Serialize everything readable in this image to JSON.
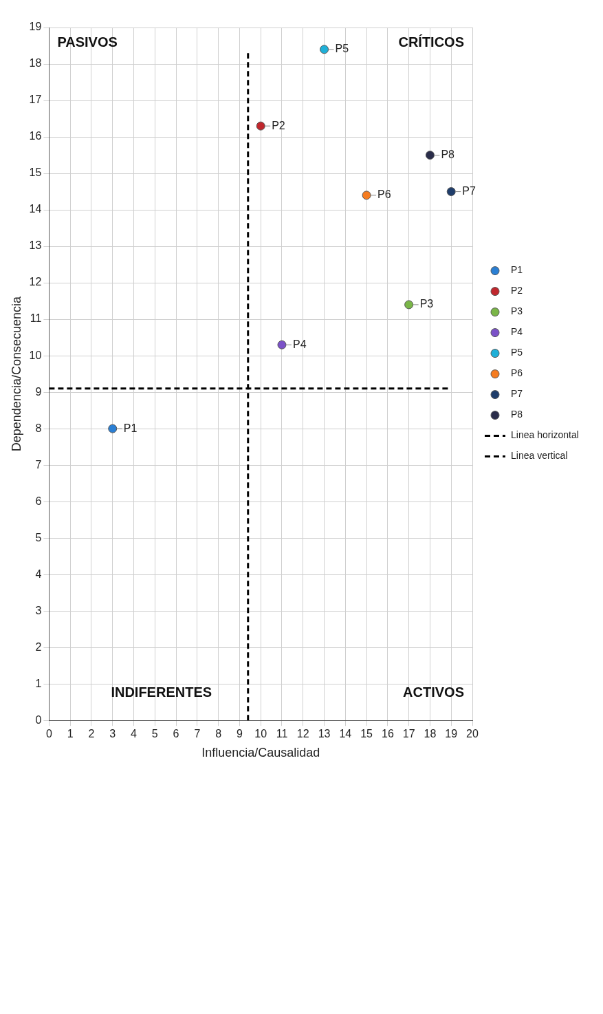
{
  "chart_data": {
    "type": "scatter",
    "xlabel": "Influencia/Causalidad",
    "ylabel": "Dependencia/Consecuencia",
    "xlim": [
      0,
      20
    ],
    "ylim": [
      0,
      19
    ],
    "xticks": [
      0,
      1,
      2,
      3,
      4,
      5,
      6,
      7,
      8,
      9,
      10,
      11,
      12,
      13,
      14,
      15,
      16,
      17,
      18,
      19,
      20
    ],
    "yticks": [
      0,
      1,
      2,
      3,
      4,
      5,
      6,
      7,
      8,
      9,
      10,
      11,
      12,
      13,
      14,
      15,
      16,
      17,
      18,
      19
    ],
    "grid": true,
    "legend": "right",
    "marker": "circle",
    "series": [
      {
        "name": "P1",
        "color": "#2a7fd4",
        "x": [
          3
        ],
        "values": [
          8
        ]
      },
      {
        "name": "P2",
        "color": "#c0272d",
        "x": [
          10
        ],
        "values": [
          16.3
        ]
      },
      {
        "name": "P3",
        "color": "#7ab648",
        "x": [
          17
        ],
        "values": [
          11.4
        ]
      },
      {
        "name": "P4",
        "color": "#7b52c8",
        "x": [
          11
        ],
        "values": [
          10.3
        ]
      },
      {
        "name": "P5",
        "color": "#1fb0d8",
        "x": [
          13
        ],
        "values": [
          18.4
        ]
      },
      {
        "name": "P6",
        "color": "#f57c20",
        "x": [
          15
        ],
        "values": [
          14.4
        ]
      },
      {
        "name": "P7",
        "color": "#1f3d6b",
        "x": [
          19
        ],
        "values": [
          14.5
        ]
      },
      {
        "name": "P8",
        "color": "#2a2d4a",
        "x": [
          18
        ],
        "values": [
          15.5
        ]
      },
      {
        "name": "Linea horizontal",
        "type": "line",
        "color": "#000000",
        "line_style": "dashed",
        "marker": "none",
        "x": [
          0,
          19
        ],
        "values": [
          9.1,
          9.1
        ]
      },
      {
        "name": "Linea vertical",
        "type": "line",
        "color": "#000000",
        "line_style": "dashed",
        "marker": "none",
        "x": [
          9.4,
          9.4
        ],
        "values": [
          0,
          18.3
        ]
      }
    ],
    "annotations": [
      "CRÍTICOS",
      "ACTIVOS",
      "PASIVOS",
      "INDIFERENTES"
    ]
  }
}
